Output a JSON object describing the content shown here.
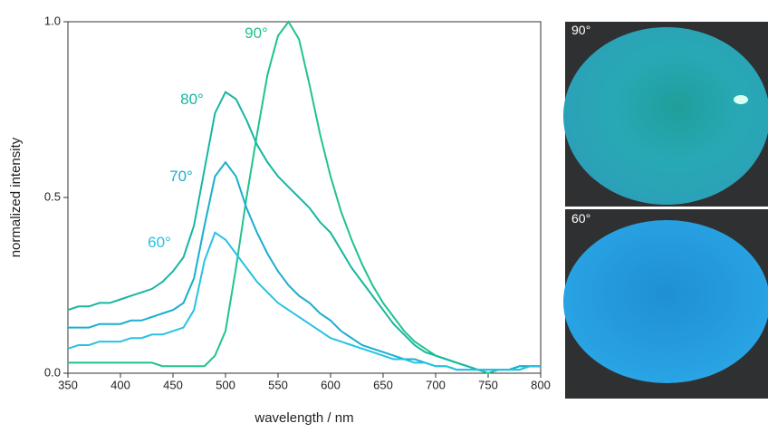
{
  "chart_data": {
    "type": "line",
    "xlabel": "wavelength / nm",
    "ylabel": "normalized intensity",
    "x": [
      350,
      360,
      370,
      380,
      390,
      400,
      410,
      420,
      430,
      440,
      450,
      460,
      470,
      480,
      490,
      500,
      510,
      520,
      530,
      540,
      550,
      560,
      570,
      580,
      590,
      600,
      610,
      620,
      630,
      640,
      650,
      660,
      670,
      680,
      690,
      700,
      710,
      720,
      730,
      740,
      750,
      760,
      770,
      780,
      790,
      800
    ],
    "series": [
      {
        "name": "90°",
        "color": "#1fc38f",
        "values": [
          0.03,
          0.03,
          0.03,
          0.03,
          0.03,
          0.03,
          0.03,
          0.03,
          0.03,
          0.02,
          0.02,
          0.02,
          0.02,
          0.02,
          0.05,
          0.12,
          0.3,
          0.5,
          0.68,
          0.85,
          0.96,
          1.0,
          0.95,
          0.82,
          0.68,
          0.56,
          0.46,
          0.38,
          0.31,
          0.25,
          0.2,
          0.16,
          0.12,
          0.09,
          0.07,
          0.05,
          0.04,
          0.03,
          0.02,
          0.01,
          0.0,
          0.01,
          0.01,
          0.01,
          0.02,
          0.02
        ]
      },
      {
        "name": "80°",
        "color": "#17b6a0",
        "values": [
          0.18,
          0.19,
          0.19,
          0.2,
          0.2,
          0.21,
          0.22,
          0.23,
          0.24,
          0.26,
          0.29,
          0.33,
          0.42,
          0.58,
          0.74,
          0.8,
          0.78,
          0.72,
          0.65,
          0.6,
          0.56,
          0.53,
          0.5,
          0.47,
          0.43,
          0.4,
          0.35,
          0.3,
          0.26,
          0.22,
          0.18,
          0.14,
          0.11,
          0.08,
          0.06,
          0.05,
          0.04,
          0.03,
          0.02,
          0.01,
          0.01,
          0.01,
          0.01,
          0.02,
          0.02,
          0.02
        ]
      },
      {
        "name": "70°",
        "color": "#1aaecf",
        "values": [
          0.13,
          0.13,
          0.13,
          0.14,
          0.14,
          0.14,
          0.15,
          0.15,
          0.16,
          0.17,
          0.18,
          0.2,
          0.27,
          0.42,
          0.56,
          0.6,
          0.56,
          0.47,
          0.4,
          0.34,
          0.29,
          0.25,
          0.22,
          0.2,
          0.17,
          0.15,
          0.12,
          0.1,
          0.08,
          0.07,
          0.06,
          0.05,
          0.04,
          0.04,
          0.03,
          0.02,
          0.02,
          0.01,
          0.01,
          0.01,
          0.01,
          0.01,
          0.01,
          0.02,
          0.02,
          0.02
        ]
      },
      {
        "name": "60°",
        "color": "#27c2e2",
        "values": [
          0.07,
          0.08,
          0.08,
          0.09,
          0.09,
          0.09,
          0.1,
          0.1,
          0.11,
          0.11,
          0.12,
          0.13,
          0.18,
          0.32,
          0.4,
          0.38,
          0.34,
          0.3,
          0.26,
          0.23,
          0.2,
          0.18,
          0.16,
          0.14,
          0.12,
          0.1,
          0.09,
          0.08,
          0.07,
          0.06,
          0.05,
          0.04,
          0.04,
          0.03,
          0.03,
          0.02,
          0.02,
          0.01,
          0.01,
          0.01,
          0.01,
          0.01,
          0.01,
          0.01,
          0.02,
          0.02
        ]
      }
    ],
    "xlim": [
      350,
      800
    ],
    "ylim": [
      0,
      1
    ],
    "xticks": [
      350,
      400,
      450,
      500,
      550,
      600,
      650,
      700,
      750,
      800
    ],
    "yticks": [
      {
        "value": 0,
        "label": "0.0"
      },
      0.5,
      {
        "value": 1,
        "label": "1.0"
      }
    ]
  },
  "photos": [
    {
      "label": "90°"
    },
    {
      "label": "60°"
    }
  ]
}
